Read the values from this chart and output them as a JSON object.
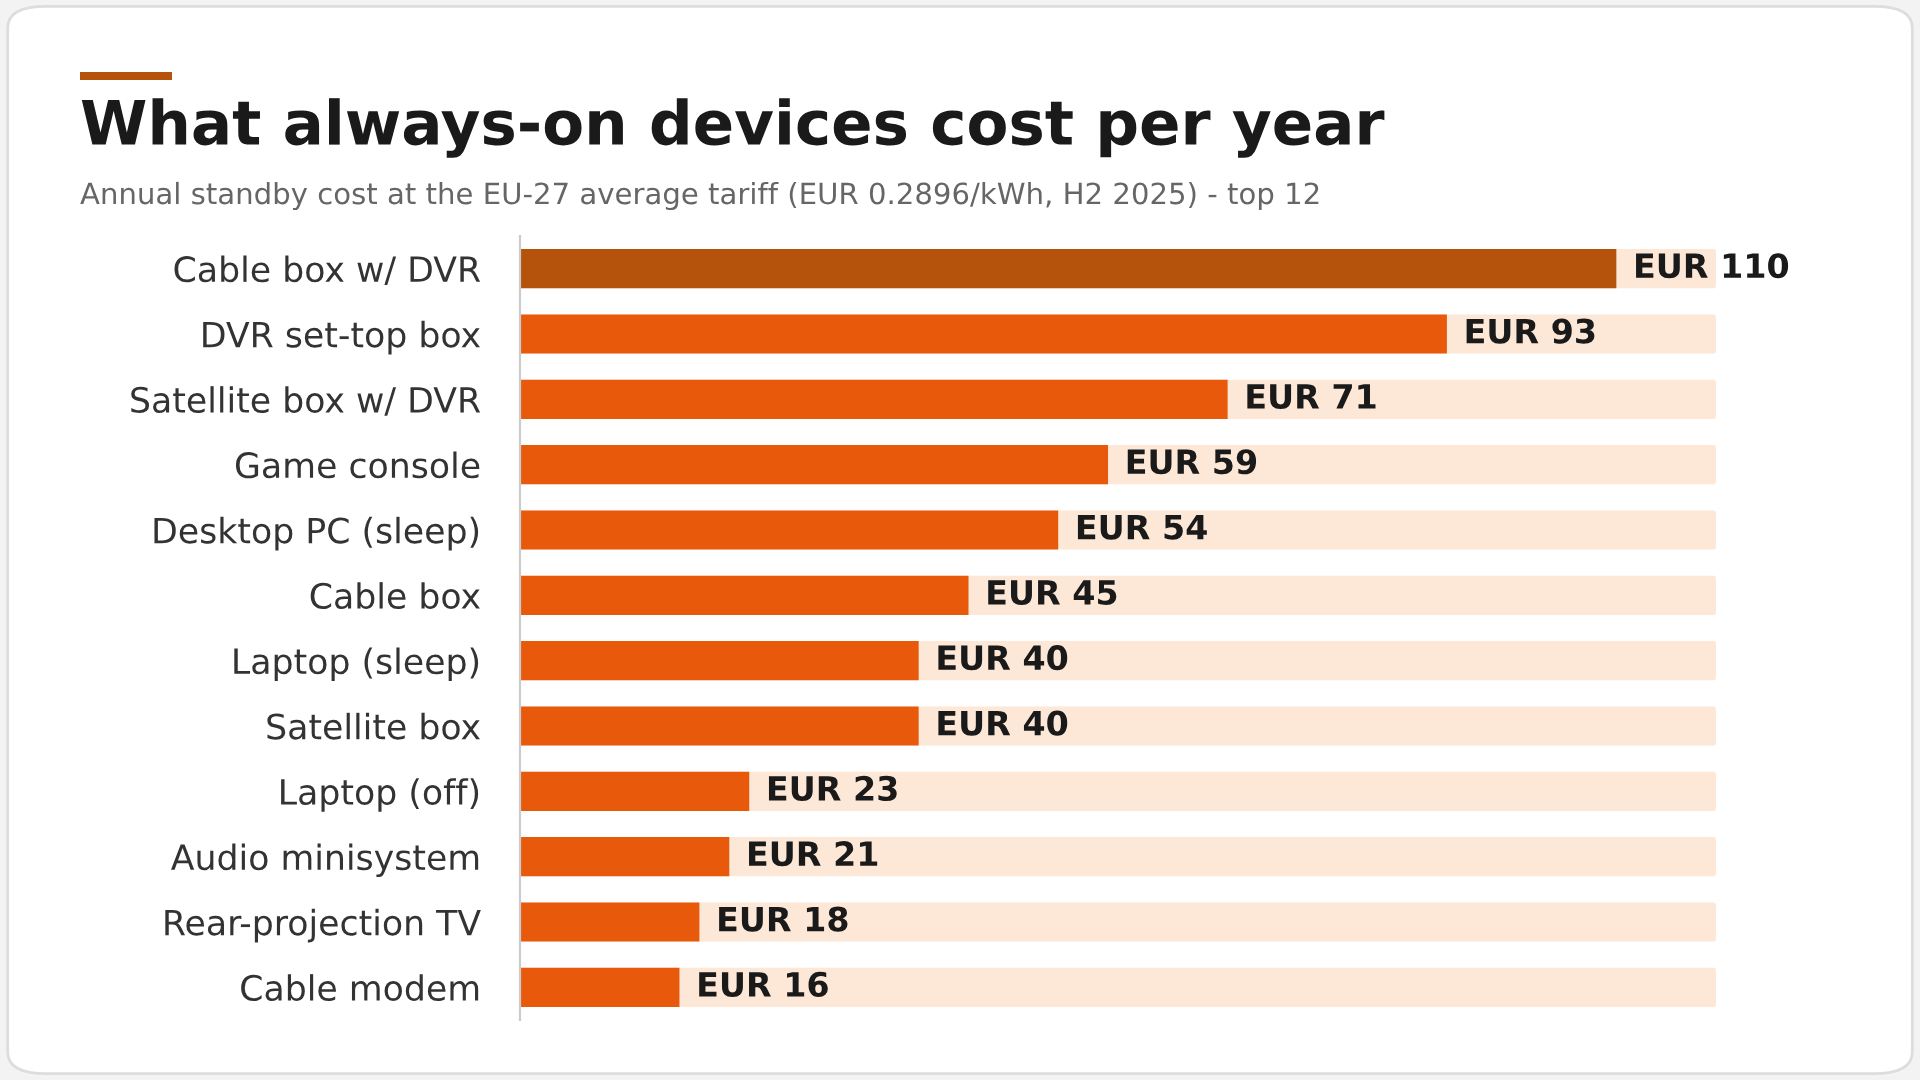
{
  "chart_data": {
    "type": "bar",
    "orientation": "horizontal",
    "title": "What always-on devices cost per year",
    "subtitle": "Annual standby cost at the EU-27 average tariff (EUR 0.2896/kWh, H2 2025) - top 12",
    "categories": [
      "Cable box w/ DVR",
      "DVR set-top box",
      "Satellite box w/ DVR",
      "Game console",
      "Desktop PC (sleep)",
      "Cable box",
      "Laptop (sleep)",
      "Satellite box",
      "Laptop (off)",
      "Audio minisystem",
      "Rear-projection TV",
      "Cable modem"
    ],
    "values": [
      110,
      93,
      71,
      59,
      54,
      45,
      40,
      40,
      23,
      21,
      18,
      16
    ],
    "colors": [
      "#b5530c",
      "#e8590c",
      "#e8590c",
      "#e8590c",
      "#e8590c",
      "#e8590c",
      "#e8590c",
      "#e8590c",
      "#e8590c",
      "#e8590c",
      "#e8590c",
      "#e8590c"
    ],
    "value_labels": [
      "EUR 110",
      "EUR 93",
      "EUR 71",
      "EUR 59",
      "EUR 54",
      "EUR 45",
      "EUR 40",
      "EUR 40",
      "EUR 23",
      "EUR 21",
      "EUR 18",
      "EUR 16"
    ],
    "xlim": [
      0,
      120
    ],
    "tick_labels": "y",
    "grid": false,
    "legend": false
  }
}
